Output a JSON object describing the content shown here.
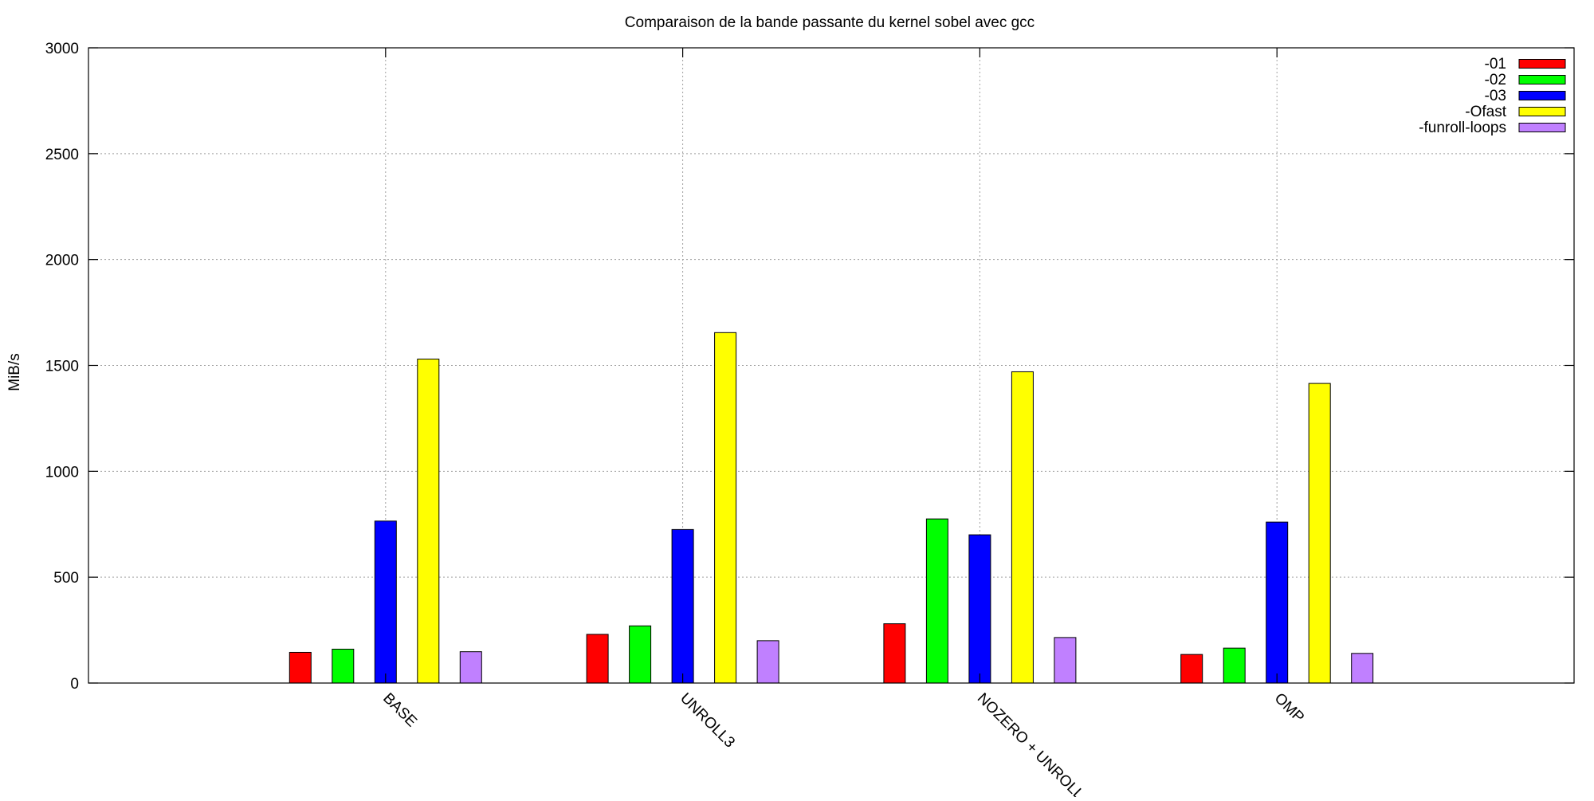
{
  "chart_data": {
    "type": "bar",
    "title": "Comparaison de la bande passante du kernel sobel avec gcc",
    "xlabel": "",
    "ylabel": "MiB/s",
    "ylim": [
      0,
      3000
    ],
    "yticks": [
      "0",
      "500",
      "1000",
      "1500",
      "2000",
      "2500",
      "3000"
    ],
    "grid": true,
    "legend_position": "top-right",
    "categories": [
      "BASE",
      "UNROLL3",
      "NOZERO + UNROLL",
      "OMP"
    ],
    "series": [
      {
        "name": "-01",
        "color": "#ff0000",
        "values": [
          145,
          230,
          280,
          135
        ]
      },
      {
        "name": "-02",
        "color": "#00ff00",
        "values": [
          160,
          270,
          775,
          165
        ]
      },
      {
        "name": "-03",
        "color": "#0000ff",
        "values": [
          765,
          725,
          700,
          760
        ]
      },
      {
        "name": "-Ofast",
        "color": "#ffff00",
        "values": [
          1530,
          1655,
          1470,
          1415
        ]
      },
      {
        "name": "-funroll-loops",
        "color": "#c080ff",
        "values": [
          148,
          200,
          215,
          140
        ]
      }
    ]
  }
}
